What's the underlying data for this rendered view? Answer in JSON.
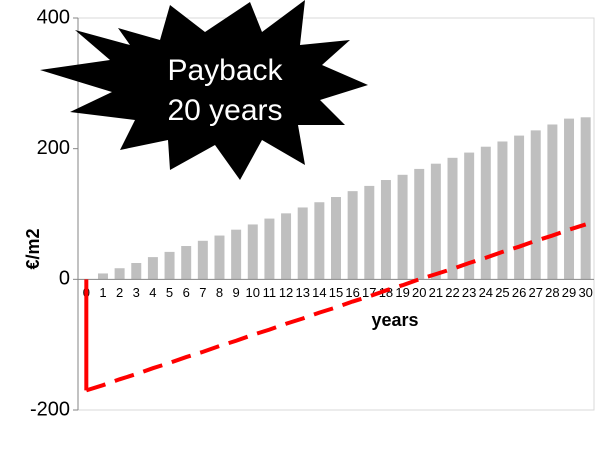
{
  "chart_data": {
    "type": "bar",
    "annotation": [
      "Payback",
      "20 years"
    ],
    "x_label": "years",
    "y_label": "€/m2",
    "categories": [
      "0",
      "1",
      "2",
      "3",
      "4",
      "5",
      "6",
      "7",
      "8",
      "9",
      "10",
      "11",
      "12",
      "13",
      "14",
      "15",
      "16",
      "17",
      "18",
      "19",
      "20",
      "21",
      "22",
      "23",
      "24",
      "25",
      "26",
      "27",
      "28",
      "29",
      "30"
    ],
    "series": [
      {
        "type": "bar",
        "color": "#bfbfbf",
        "values": [
          0,
          9,
          17,
          25,
          34,
          42,
          51,
          59,
          67,
          76,
          84,
          93,
          101,
          110,
          118,
          126,
          135,
          143,
          152,
          160,
          169,
          177,
          186,
          194,
          203,
          211,
          220,
          228,
          237,
          246,
          248
        ]
      },
      {
        "type": "line",
        "color": "#ff0000",
        "values": [
          -170,
          -162,
          -153,
          -145,
          -136,
          -128,
          -119,
          -111,
          -102,
          -94,
          -85,
          -77,
          -68,
          -60,
          -51,
          -43,
          -34,
          -26,
          -17,
          -9,
          0,
          8,
          16,
          25,
          33,
          42,
          50,
          59,
          67,
          76,
          84
        ]
      }
    ],
    "ylim": [
      -200,
      400
    ],
    "yticks": [
      -200,
      0,
      200,
      400
    ]
  }
}
